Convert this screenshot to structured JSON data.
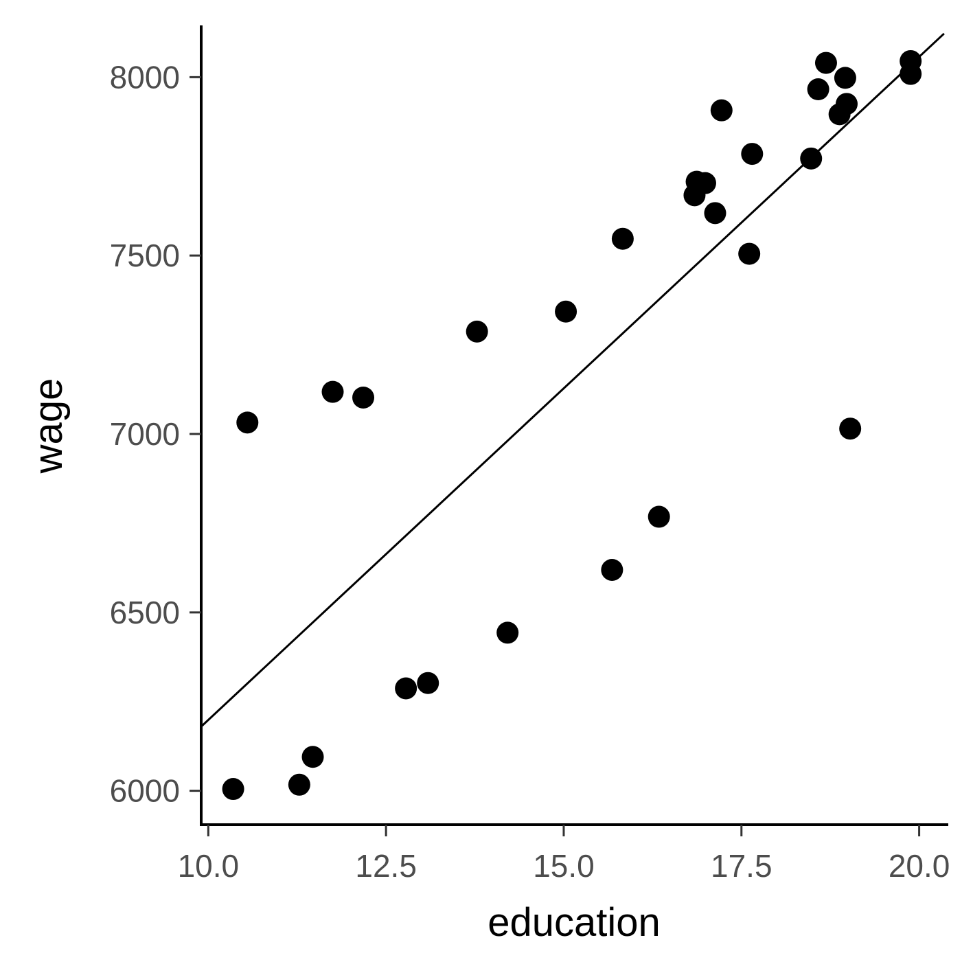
{
  "chart_data": {
    "type": "scatter",
    "title": "",
    "xlabel": "education",
    "ylabel": "wage",
    "xlim": [
      9.9,
      20.4
    ],
    "ylim": [
      5905,
      8145
    ],
    "x_ticks": [
      10.0,
      12.5,
      15.0,
      17.5,
      20.0
    ],
    "x_tick_labels": [
      "10.0",
      "12.5",
      "15.0",
      "17.5",
      "20.0"
    ],
    "y_ticks": [
      6000,
      6500,
      7000,
      7500,
      8000
    ],
    "y_tick_labels": [
      "6000",
      "6500",
      "7000",
      "7500",
      "8000"
    ],
    "grid": false,
    "points": [
      {
        "x": 10.35,
        "y": 6005
      },
      {
        "x": 10.55,
        "y": 7032
      },
      {
        "x": 11.28,
        "y": 6017
      },
      {
        "x": 11.47,
        "y": 6095
      },
      {
        "x": 11.75,
        "y": 7118
      },
      {
        "x": 12.18,
        "y": 7102
      },
      {
        "x": 12.78,
        "y": 6287
      },
      {
        "x": 13.09,
        "y": 6302
      },
      {
        "x": 13.78,
        "y": 7287
      },
      {
        "x": 14.21,
        "y": 6443
      },
      {
        "x": 15.03,
        "y": 7343
      },
      {
        "x": 15.68,
        "y": 6619
      },
      {
        "x": 15.83,
        "y": 7547
      },
      {
        "x": 16.34,
        "y": 6768
      },
      {
        "x": 16.84,
        "y": 7669
      },
      {
        "x": 16.87,
        "y": 7707
      },
      {
        "x": 16.99,
        "y": 7703
      },
      {
        "x": 17.13,
        "y": 7619
      },
      {
        "x": 17.22,
        "y": 7907
      },
      {
        "x": 17.61,
        "y": 7505
      },
      {
        "x": 17.65,
        "y": 7785
      },
      {
        "x": 18.48,
        "y": 7772
      },
      {
        "x": 18.58,
        "y": 7966
      },
      {
        "x": 18.69,
        "y": 8040
      },
      {
        "x": 18.88,
        "y": 7896
      },
      {
        "x": 18.96,
        "y": 7998
      },
      {
        "x": 18.98,
        "y": 7925
      },
      {
        "x": 19.03,
        "y": 7015
      },
      {
        "x": 19.88,
        "y": 8009
      },
      {
        "x": 19.88,
        "y": 8045
      }
    ],
    "trend_line": {
      "x": [
        9.9,
        20.35
      ],
      "y": [
        6180,
        8122
      ]
    },
    "marker_color": "#000000",
    "line_color": "#000000"
  }
}
